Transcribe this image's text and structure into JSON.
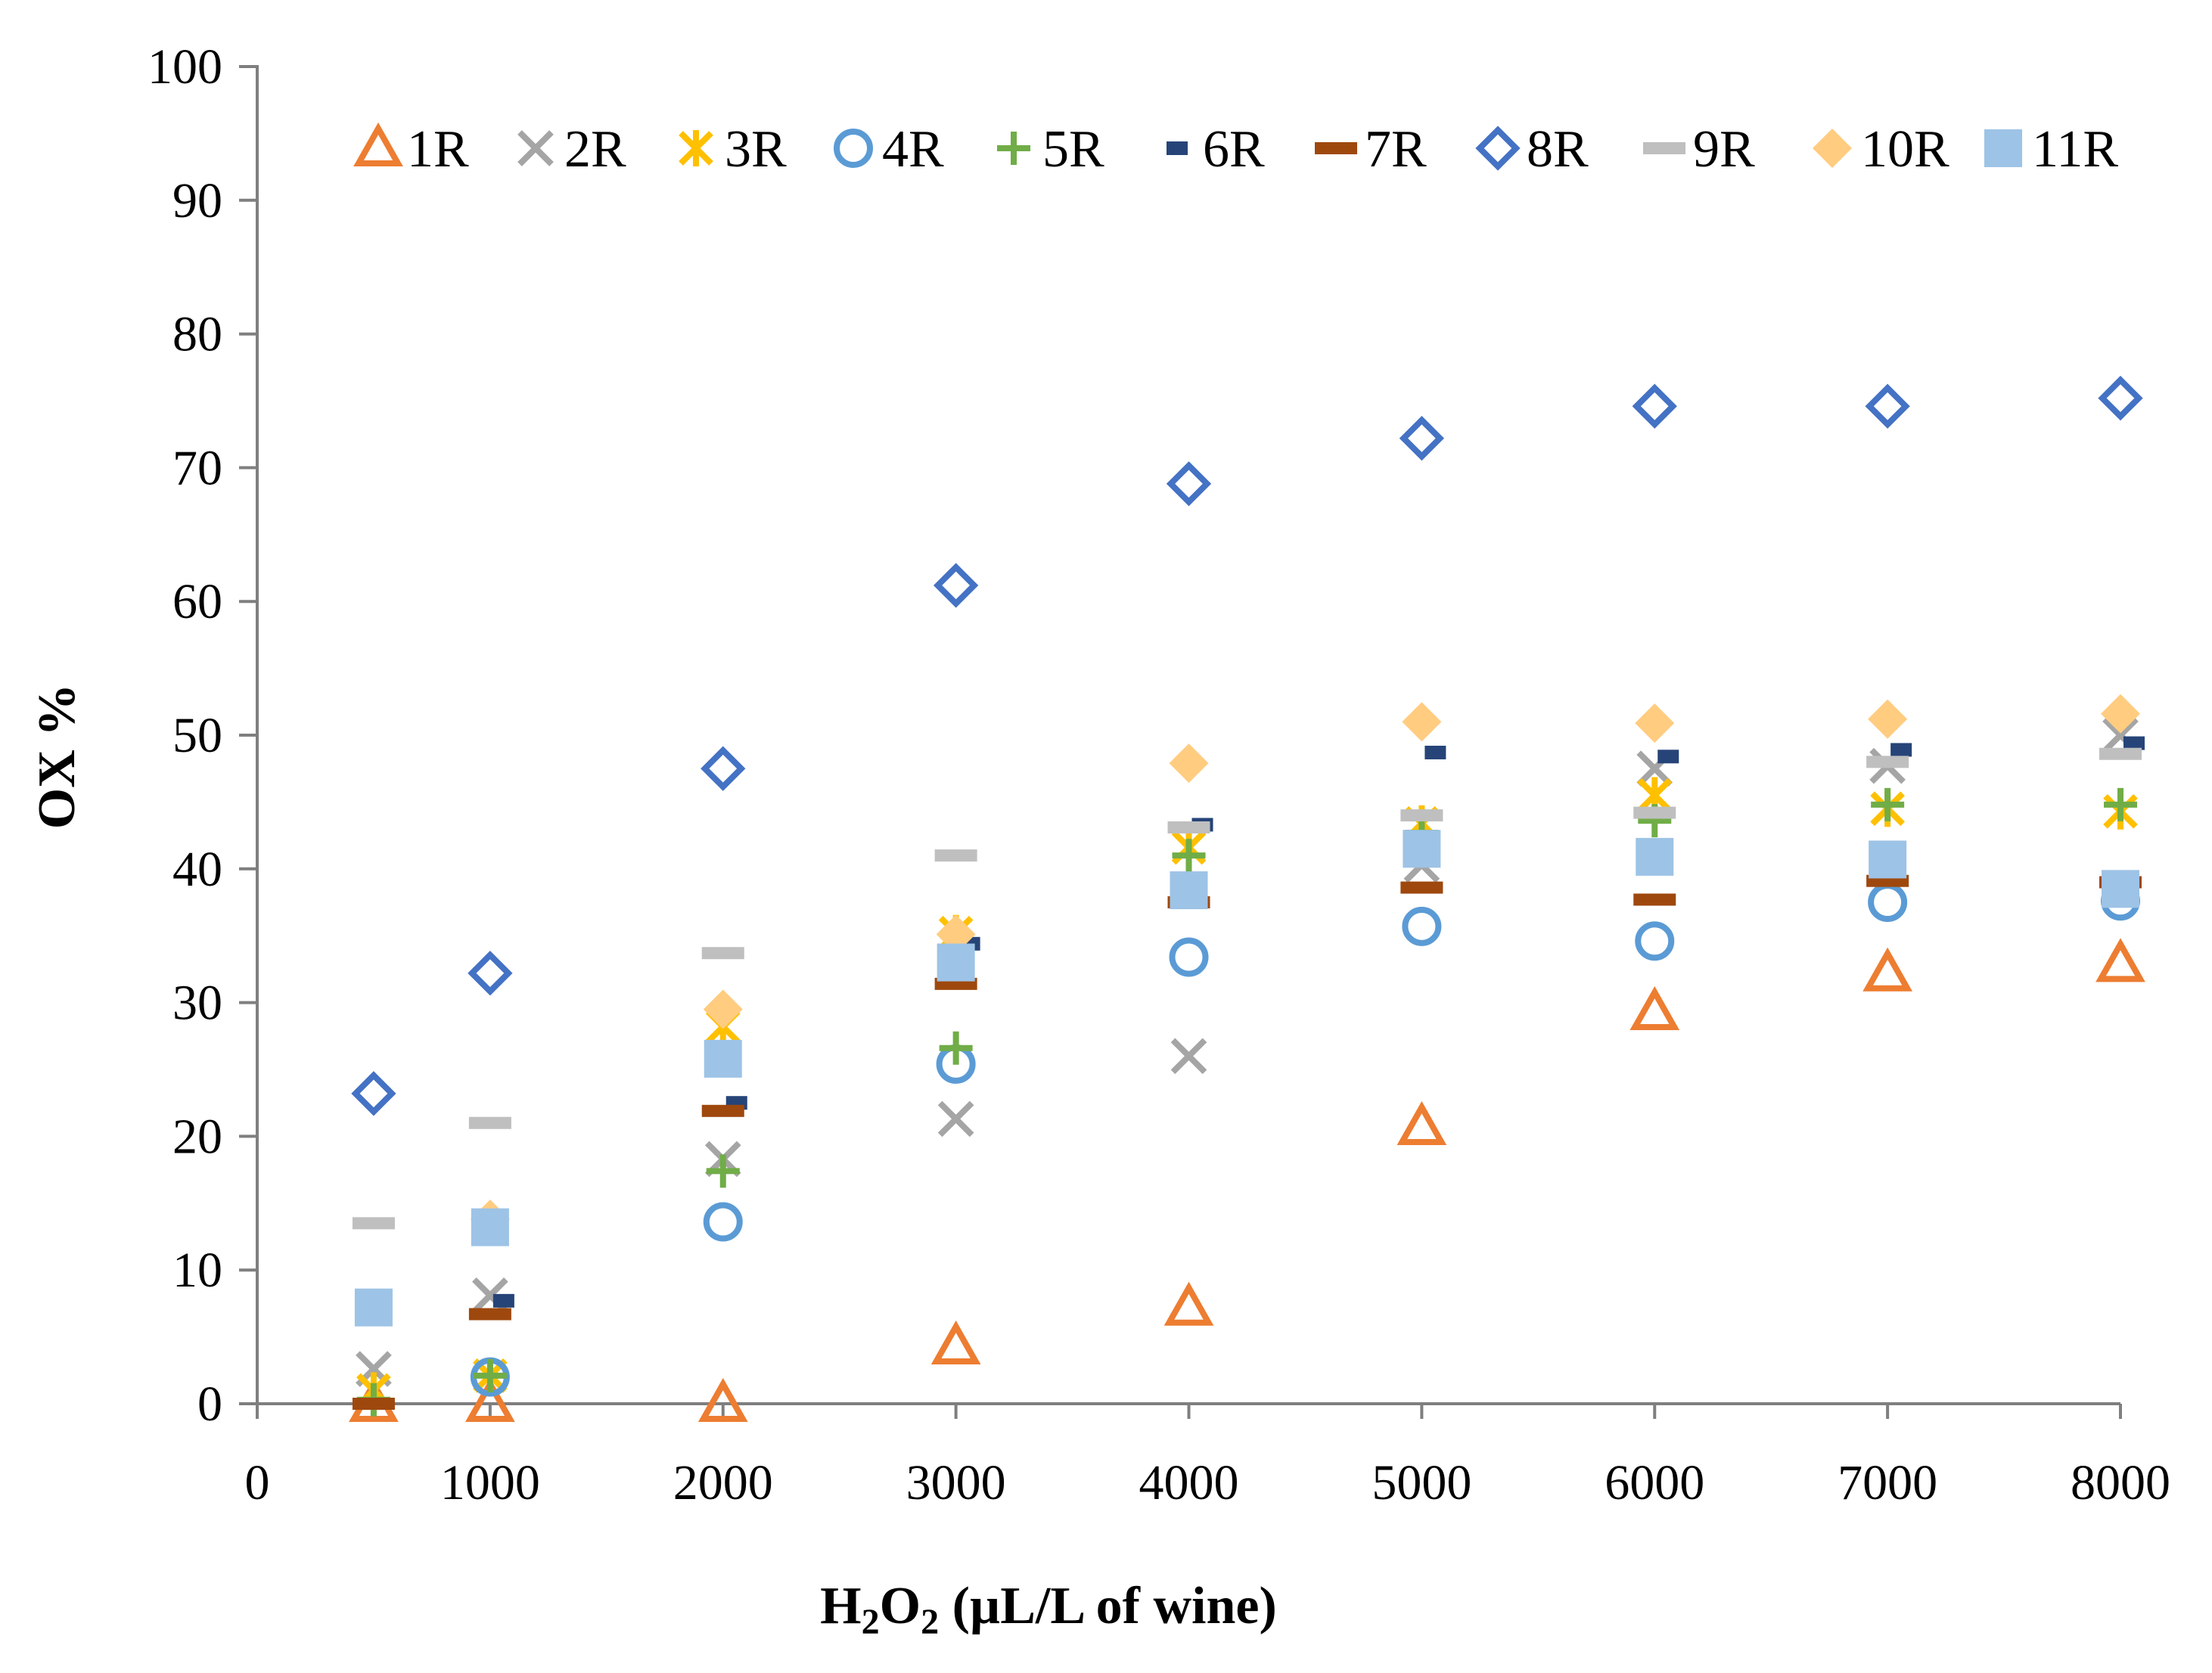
{
  "chart_data": {
    "type": "scatter",
    "title": "",
    "xlabel_parts": {
      "h": "H",
      "sub1": "2",
      "o": "O",
      "sub2": "2",
      "rest": " (µL/L of wine)"
    },
    "ylabel": "OX %",
    "xlim": [
      0,
      8000
    ],
    "ylim": [
      0,
      100
    ],
    "x_ticks": [
      0,
      1000,
      2000,
      3000,
      4000,
      5000,
      6000,
      7000,
      8000
    ],
    "y_ticks": [
      0,
      10,
      20,
      30,
      40,
      50,
      60,
      70,
      80,
      90,
      100
    ],
    "legend_position": "top",
    "x": [
      500,
      1000,
      2000,
      3000,
      4000,
      5000,
      6000,
      7000,
      8000
    ],
    "series": [
      {
        "name": "1R",
        "marker": "triangle-open",
        "color": "#ED7D31",
        "values": [
          0,
          0,
          0,
          4.3,
          7.2,
          20.7,
          29.3,
          32.2,
          32.9
        ]
      },
      {
        "name": "2R",
        "marker": "x",
        "color": "#A5A5A5",
        "values": [
          2.6,
          8.1,
          18.3,
          21.3,
          26,
          40.3,
          47.5,
          47.7,
          50
        ]
      },
      {
        "name": "3R",
        "marker": "star",
        "color": "#FFC000",
        "values": [
          1,
          2.1,
          28.2,
          35.2,
          41.6,
          43.4,
          45.5,
          44.5,
          44.3
        ]
      },
      {
        "name": "4R",
        "marker": "circle-open",
        "color": "#5B9BD5",
        "values": [
          null,
          2,
          13.6,
          25.4,
          33.4,
          35.7,
          34.6,
          37.5,
          37.6
        ]
      },
      {
        "name": "5R",
        "marker": "plus",
        "color": "#70AD47",
        "values": [
          0.3,
          2.1,
          17.4,
          26.6,
          41,
          42.7,
          43.6,
          44.8,
          44.8
        ]
      },
      {
        "name": "6R",
        "marker": "dash",
        "color": "#264478",
        "values": [
          null,
          7.7,
          22.5,
          34.4,
          43.3,
          48.7,
          48.4,
          48.9,
          49.4
        ]
      },
      {
        "name": "7R",
        "marker": "dash",
        "color": "#9E480E",
        "values": [
          0,
          6.7,
          21.9,
          31.4,
          37.5,
          38.6,
          37.7,
          39.1,
          39
        ]
      },
      {
        "name": "8R",
        "marker": "diamond-open",
        "color": "#4472C4",
        "values": [
          23.2,
          32.2,
          47.5,
          61.2,
          68.8,
          72.2,
          74.6,
          74.6,
          75.2
        ]
      },
      {
        "name": "9R",
        "marker": "dash",
        "color": "#BFBFBF",
        "values": [
          13.5,
          21,
          33.7,
          41,
          43.1,
          44,
          44.2,
          48,
          48.6
        ]
      },
      {
        "name": "10R",
        "marker": "diamond-filled",
        "color": "#FFCC80",
        "values": [
          null,
          13.8,
          29.5,
          35.1,
          47.9,
          51,
          50.9,
          51.2,
          51.6
        ]
      },
      {
        "name": "11R",
        "marker": "square-filled",
        "color": "#9DC3E6",
        "values": [
          7.2,
          13.2,
          25.8,
          33,
          38.4,
          41.5,
          40.9,
          40.7,
          38.5
        ]
      }
    ]
  }
}
